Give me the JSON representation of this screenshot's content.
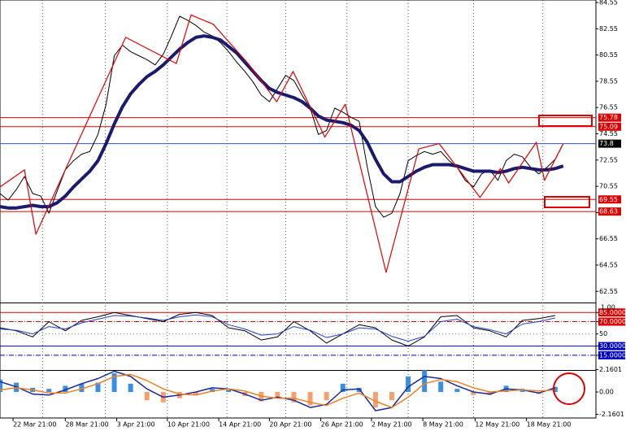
{
  "chart_data": [
    {
      "type": "line",
      "xlim": [
        0,
        73
      ],
      "ylim": [
        61.7,
        84.74
      ],
      "yticks": [
        84.55,
        82.55,
        80.55,
        78.55,
        76.55,
        74.55,
        72.55,
        70.55,
        68.55,
        66.55,
        64.55,
        62.55
      ],
      "xticks": [
        {
          "value": 1.6,
          "label": "22 Mar 21:00"
        },
        {
          "value": 8,
          "label": "28 Mar 21:00"
        },
        {
          "value": 14.3,
          "label": "3 Apr 21:00"
        },
        {
          "value": 20.5,
          "label": "10 Apr 21:00"
        },
        {
          "value": 26.8,
          "label": "14 Apr 21:00"
        },
        {
          "value": 33,
          "label": "20 Apr 21:00"
        },
        {
          "value": 39.3,
          "label": "26 Apr 21:00"
        },
        {
          "value": 45.5,
          "label": "2 May 21:00"
        },
        {
          "value": 51.8,
          "label": "8 May 21:00"
        },
        {
          "value": 58.2,
          "label": "12 May 21:00"
        },
        {
          "value": 64.5,
          "label": "18 May 21:00"
        }
      ],
      "xgrid": [
        5.2,
        12.9,
        20.5,
        27.8,
        35,
        42.5,
        50,
        58,
        66.5
      ],
      "x": [
        0,
        1,
        2,
        3,
        4,
        5,
        6,
        7,
        8,
        9,
        10,
        11,
        12,
        13,
        14,
        15,
        16,
        17,
        18,
        19,
        20,
        21,
        22,
        23,
        24,
        25,
        26,
        27,
        28,
        29,
        30,
        31,
        32,
        33,
        34,
        35,
        36,
        37,
        38,
        39,
        40,
        41,
        42,
        43,
        44,
        45,
        46,
        47,
        48,
        49,
        50,
        51,
        52,
        53,
        54,
        55,
        56,
        57,
        58,
        59,
        60,
        61,
        62,
        63,
        64,
        65,
        66,
        67,
        68,
        69
      ],
      "series": [
        {
          "color": "#000000",
          "line_width": 1,
          "values": [
            70.0,
            69.5,
            70.3,
            71.3,
            70.0,
            69.8,
            68.5,
            70.2,
            71.8,
            72.5,
            73.0,
            73.2,
            74.5,
            76.8,
            80.5,
            81.3,
            80.8,
            80.5,
            80.2,
            79.8,
            80.6,
            82.0,
            83.5,
            83.2,
            82.8,
            82.3,
            82.0,
            81.5,
            80.8,
            80.0,
            79.3,
            78.5,
            77.5,
            77.0,
            78.0,
            79.0,
            78.6,
            77.5,
            76.5,
            74.5,
            74.8,
            76.5,
            76.2,
            75.8,
            75.5,
            72.0,
            69.0,
            68.2,
            68.5,
            70.0,
            72.5,
            72.9,
            73.2,
            73.0,
            73.2,
            72.5,
            72.0,
            71.0,
            70.5,
            71.5,
            71.8,
            71.0,
            72.5,
            73.0,
            72.8,
            72.0,
            71.5,
            72.0,
            72.6,
            73.8
          ]
        },
        {
          "color": "#1a1a6e",
          "line_width": 4,
          "values": [
            69.0,
            68.9,
            68.9,
            69.0,
            69.1,
            69.0,
            69.0,
            69.3,
            69.8,
            70.5,
            71.1,
            71.7,
            72.5,
            73.8,
            75.3,
            76.6,
            77.6,
            78.3,
            78.9,
            79.3,
            79.8,
            80.4,
            81.0,
            81.5,
            81.9,
            82.0,
            81.9,
            81.7,
            81.2,
            80.7,
            80.0,
            79.3,
            78.6,
            78.0,
            77.7,
            77.5,
            77.3,
            77.0,
            76.5,
            75.9,
            75.6,
            75.5,
            75.4,
            75.2,
            74.8,
            73.9,
            72.6,
            71.5,
            70.9,
            70.9,
            71.3,
            71.7,
            72.0,
            72.2,
            72.2,
            72.2,
            72.1,
            71.9,
            71.7,
            71.7,
            71.7,
            71.6,
            71.7,
            71.9,
            72.0,
            71.9,
            71.8,
            71.8,
            71.9,
            72.1
          ]
        },
        {
          "color": "#e00000",
          "line_width": 1.2,
          "x": [
            0,
            3,
            4.4,
            15.4,
            21.6,
            23.4,
            26.1,
            30.4,
            33.9,
            35.9,
            39.8,
            42.3,
            47.3,
            51.3,
            53.8,
            58.8,
            61.3,
            62.3,
            65.7,
            66.7,
            69
          ],
          "values": [
            70.5,
            71.8,
            66.9,
            81.9,
            79.9,
            83.6,
            82.9,
            79.9,
            77.0,
            79.3,
            74.3,
            76.8,
            64.0,
            73.4,
            73.8,
            69.7,
            71.9,
            70.8,
            73.9,
            71.0,
            73.8
          ]
        }
      ],
      "levels": [
        {
          "value": 75.78,
          "color": "#e00000"
        },
        {
          "value": 75.09,
          "color": "#e00000"
        },
        {
          "value": 73.8,
          "color": "#3050d0"
        },
        {
          "value": 69.55,
          "color": "#e00000"
        },
        {
          "value": 68.63,
          "color": "#e00000"
        }
      ]
    },
    {
      "type": "line",
      "ylim": [
        -10.4,
        101.3
      ],
      "top_label": "1.00",
      "yticks": [
        {
          "value": 85,
          "label": "85.0000"
        },
        {
          "value": 70,
          "label": "70.0000"
        },
        50,
        {
          "value": 30,
          "label": "30.0000"
        },
        {
          "value": 15,
          "label": "15.0000"
        }
      ],
      "tick_colors": [
        "#e00000",
        "#e00000",
        "#999999",
        "#0000c0",
        "#0000c0"
      ],
      "boxed": [
        true,
        true,
        false,
        true,
        true
      ],
      "x": [
        0,
        2,
        4,
        6,
        8,
        10,
        12,
        14,
        16,
        18,
        20,
        22,
        24,
        26,
        28,
        30,
        32,
        34,
        36,
        38,
        40,
        42,
        44,
        46,
        48,
        50,
        52,
        54,
        56,
        58,
        60,
        62,
        64,
        66,
        68
      ],
      "series": [
        {
          "color": "#000000",
          "line_width": 1,
          "values": [
            60,
            55,
            45,
            70,
            55,
            72,
            78,
            85,
            80,
            75,
            70,
            82,
            85,
            80,
            60,
            55,
            40,
            45,
            70,
            55,
            35,
            50,
            65,
            60,
            40,
            30,
            45,
            78,
            80,
            60,
            55,
            45,
            72,
            75,
            80
          ]
        },
        {
          "color": "#2040d0",
          "line_width": 1,
          "values": [
            58,
            56,
            50,
            62,
            58,
            68,
            74,
            80,
            79,
            76,
            72,
            78,
            81,
            78,
            65,
            58,
            48,
            50,
            62,
            56,
            44,
            50,
            60,
            58,
            46,
            38,
            46,
            70,
            74,
            62,
            57,
            50,
            66,
            70,
            76
          ]
        }
      ]
    },
    {
      "type": "bar",
      "ylim": [
        -2.51,
        2.2
      ],
      "yticks": [
        2.1601,
        {
          "value": 0,
          "label": "0.00"
        },
        -2.1601
      ],
      "x": [
        0,
        2,
        4,
        6,
        8,
        10,
        12,
        14,
        16,
        18,
        20,
        22,
        24,
        26,
        28,
        30,
        32,
        34,
        36,
        38,
        40,
        42,
        44,
        46,
        48,
        50,
        52,
        54,
        56,
        58,
        60,
        62,
        64,
        66,
        68
      ],
      "values": [
        1.2,
        0.9,
        0.4,
        0.3,
        0.6,
        0.8,
        0.9,
        1.8,
        0.8,
        -0.8,
        -1.0,
        -0.6,
        -0.3,
        0.3,
        0.2,
        -0.4,
        -0.9,
        -0.6,
        -1.0,
        -1.3,
        -0.8,
        0.8,
        0.4,
        -1.5,
        -0.8,
        1.5,
        2.1,
        1.0,
        0.3,
        -0.3,
        -0.3,
        0.6,
        0.3,
        -0.2,
        0.5
      ],
      "color": "#3a8ee6",
      "negative_color": "#f4a070",
      "series": [
        {
          "color": "#1a2a9e",
          "line_width": 1.5,
          "values": [
            1.0,
            0.5,
            -0.2,
            -0.3,
            0.2,
            0.8,
            1.3,
            2.0,
            1.5,
            0.3,
            -0.5,
            -0.3,
            0,
            0.4,
            0.3,
            -0.2,
            -0.8,
            -0.5,
            -0.8,
            -1.5,
            -1.2,
            0.2,
            0.3,
            -1.8,
            -1.5,
            0.5,
            1.5,
            1.3,
            0.6,
            0,
            -0.2,
            0.3,
            0.2,
            -0.1,
            0.4
          ]
        },
        {
          "color": "#f08020",
          "line_width": 1.5,
          "values": [
            0.2,
            0.4,
            0.2,
            -0.1,
            -0.1,
            0.3,
            0.8,
            1.5,
            1.7,
            1.1,
            0.3,
            -0.2,
            -0.3,
            0.1,
            0.3,
            0.1,
            -0.4,
            -0.6,
            -0.6,
            -1.0,
            -1.3,
            -0.6,
            -0.1,
            -0.9,
            -1.5,
            -0.5,
            0.8,
            1.2,
            1.0,
            0.4,
            0,
            0.1,
            0.2,
            0.1,
            0.2
          ]
        }
      ]
    }
  ]
}
